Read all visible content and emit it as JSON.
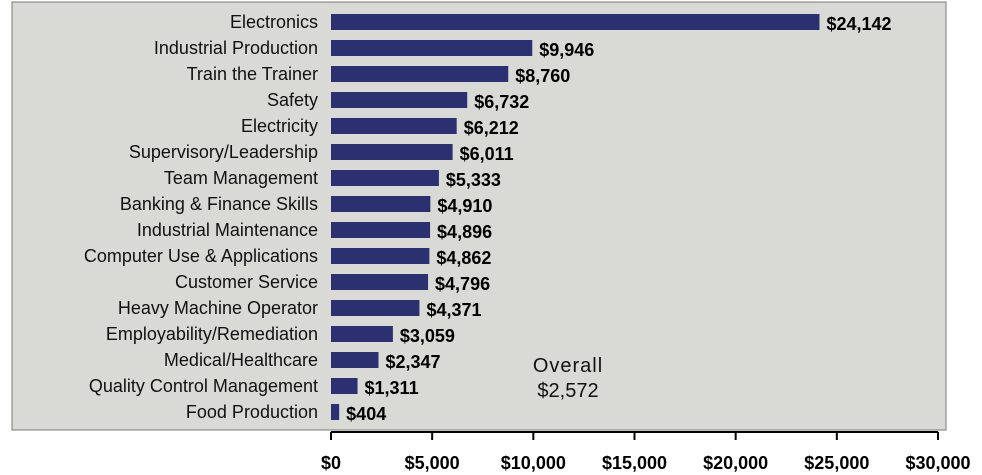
{
  "chart_data": {
    "type": "bar",
    "orientation": "horizontal",
    "categories": [
      "Electronics",
      "Industrial Production",
      "Train the Trainer",
      "Safety",
      "Electricity",
      "Supervisory/Leadership",
      "Team Management",
      "Banking & Finance Skills",
      "Industrial Maintenance",
      "Computer Use & Applications",
      "Customer Service",
      "Heavy Machine Operator",
      "Employability/Remediation",
      "Medical/Healthcare",
      "Quality Control Management",
      "Food Production"
    ],
    "values": [
      24142,
      9946,
      8760,
      6732,
      6212,
      6011,
      5333,
      4910,
      4896,
      4862,
      4796,
      4371,
      3059,
      2347,
      1311,
      404
    ],
    "value_labels": [
      "$24,142",
      "$9,946",
      "$8,760",
      "$6,732",
      "$6,212",
      "$6,011",
      "$5,333",
      "$4,910",
      "$4,896",
      "$4,862",
      "$4,796",
      "$4,371",
      "$3,059",
      "$2,347",
      "$1,311",
      "$404"
    ],
    "xlim": [
      0,
      30000
    ],
    "x_ticks": [
      0,
      5000,
      10000,
      15000,
      20000,
      25000,
      30000
    ],
    "x_tick_labels": [
      "$0",
      "$5,000",
      "$10,000",
      "$15,000",
      "$20,000",
      "$25,000",
      "$30,000"
    ],
    "annotation": {
      "label": "Overall",
      "value": "$2,572"
    },
    "grid": false,
    "colors": {
      "bar": "#2b3170",
      "plot_background": "#d9d9d6",
      "text": "#111111"
    }
  }
}
